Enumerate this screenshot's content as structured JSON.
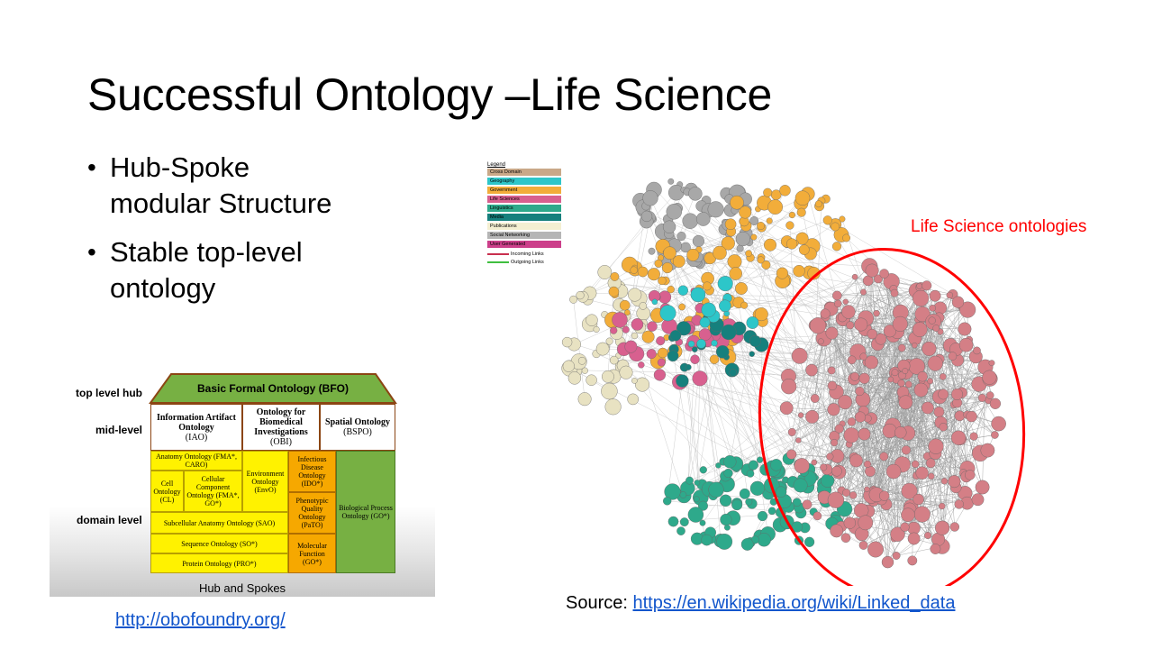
{
  "slide": {
    "title": "Successful Ontology –Life Science",
    "bullets": [
      "Hub-Spoke modular Structure",
      "Stable top-level ontology"
    ]
  },
  "hub_diagram": {
    "levels": {
      "top": "top level hub",
      "mid": "mid-level",
      "domain": "domain level"
    },
    "top_box": "Basic Formal Ontology (BFO)",
    "mid_boxes": [
      {
        "name": "Information Artifact Ontology",
        "abbr": "(IAO)"
      },
      {
        "name": "Ontology for Biomedical Investigations",
        "abbr": "(OBI)"
      },
      {
        "name": "Spatial Ontology",
        "abbr": "(BSPO)"
      }
    ],
    "domain_boxes": {
      "anatomy": "Anatomy Ontology (FMA*, CARO)",
      "cell": "Cell Ontology (CL)",
      "cellular_component": "Cellular Component Ontology (FMA*, GO*)",
      "environment": "Environment Ontology (EnvO)",
      "infectious_disease": "Infectious Disease Ontology (IDO*)",
      "phenotypic_quality": "Phenotypic Quality Ontology (PaTO)",
      "biological_process": "Biological Process Ontology (GO*)",
      "subcellular_anatomy": "Subcellular Anatomy Ontology (SAO)",
      "sequence": "Sequence Ontology (SO*)",
      "protein": "Protein Ontology (PRO*)",
      "molecular_function": "Molecular Function (GO*)"
    },
    "footer": "Hub and Spokes",
    "colors": {
      "top": "#77b043",
      "domain": "#fff200",
      "orange": "#f6a800",
      "green": "#77b043"
    }
  },
  "obo_link": "http://obofoundry.org/",
  "network": {
    "legend_title": "Legend",
    "legend_items": [
      {
        "label": "Cross Domain",
        "color": "#c9a888"
      },
      {
        "label": "Geography",
        "color": "#2dc6c9"
      },
      {
        "label": "Government",
        "color": "#f2ad3a"
      },
      {
        "label": "Life Sciences",
        "color": "#d8608f"
      },
      {
        "label": "Linguistics",
        "color": "#2ea98b"
      },
      {
        "label": "Media",
        "color": "#16807d"
      },
      {
        "label": "Publications",
        "color": "#f4efd2"
      },
      {
        "label": "Social Networking",
        "color": "#b5b5b5"
      },
      {
        "label": "User Generated",
        "color": "#cc3f8a"
      }
    ],
    "legend_links": [
      {
        "label": "Incoming Links",
        "color": "#c9304f"
      },
      {
        "label": "Outgoing Links",
        "color": "#3fbf3f"
      }
    ],
    "annotation": "Life Science ontologies",
    "source_label": "Source: ",
    "source_url": "https://en.wikipedia.org/wiki/Linked_data"
  }
}
